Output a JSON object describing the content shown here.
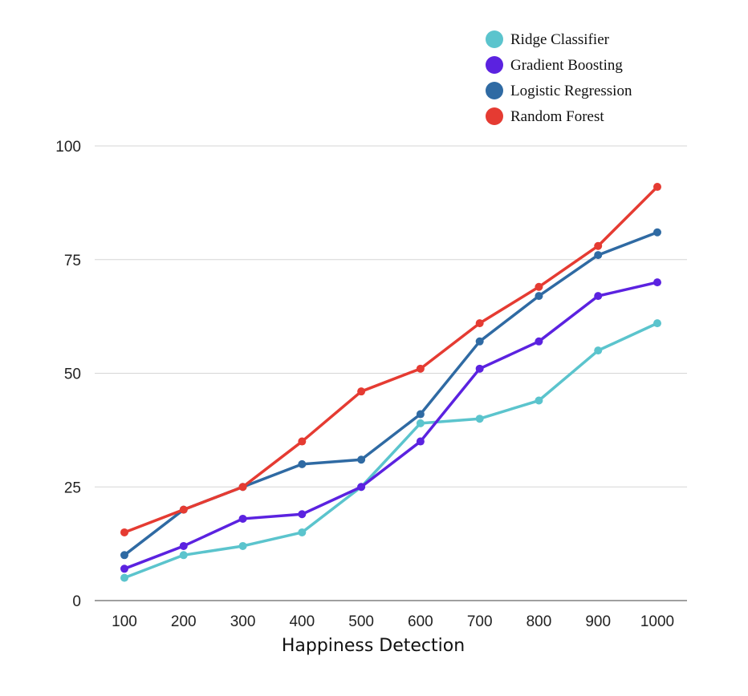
{
  "chart_data": {
    "type": "line",
    "title": "",
    "xlabel": "Happiness Detection",
    "ylabel": "",
    "x": [
      "100",
      "200",
      "300",
      "400",
      "500",
      "600",
      "700",
      "800",
      "900",
      "1000"
    ],
    "ylim": [
      0,
      100
    ],
    "yticks": [
      "0",
      "25",
      "50",
      "75",
      "100"
    ],
    "grid": "horizontal",
    "legend_position": "top-right",
    "series": [
      {
        "name": "Ridge Classifier",
        "color": "#5bc4cd",
        "values": [
          5,
          10,
          12,
          15,
          25,
          39,
          40,
          44,
          55,
          61
        ]
      },
      {
        "name": "Gradient Boosting",
        "color": "#5b22e0",
        "values": [
          7,
          12,
          18,
          19,
          25,
          35,
          51,
          57,
          67,
          70
        ]
      },
      {
        "name": "Logistic Regression",
        "color": "#2f6aa3",
        "values": [
          10,
          20,
          25,
          30,
          31,
          41,
          57,
          67,
          76,
          81
        ]
      },
      {
        "name": "Random Forest",
        "color": "#e53b32",
        "values": [
          15,
          20,
          25,
          35,
          46,
          51,
          61,
          69,
          78,
          91
        ]
      }
    ]
  }
}
